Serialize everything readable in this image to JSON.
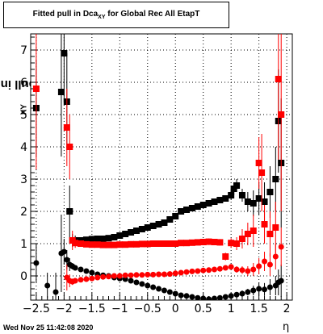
{
  "title": {
    "prefix": "Fitted pull in Dca",
    "sub": "XY",
    "suffix": " for Global Rec All EtapT"
  },
  "ylabel": {
    "main": "pull in Dca",
    "sub": "XY"
  },
  "xlabel": "η",
  "timestamp": "Wed Nov 25 11:42:08 2020",
  "chart_data": {
    "type": "scatter",
    "xlim": [
      -2.6,
      2.1
    ],
    "ylim": [
      -0.75,
      7.5
    ],
    "grid": true,
    "x_ticks": [
      -2.5,
      -2,
      -1.5,
      -1,
      -0.5,
      0,
      0.5,
      1,
      1.5,
      2
    ],
    "x_tick_labels": [
      "−2.5",
      "−2",
      "−1.5",
      "−1",
      "−0.5",
      "0",
      "0.5",
      "1",
      "1.5",
      "2"
    ],
    "y_ticks": [
      0,
      1,
      2,
      3,
      4,
      5,
      6,
      7
    ],
    "y_tick_labels": [
      "0",
      "1",
      "2",
      "3",
      "4",
      "5",
      "6",
      "7"
    ],
    "series": [
      {
        "color": "#000000",
        "marker": "square",
        "x": [
          -2.5,
          -2.05,
          -2.0,
          -1.95,
          -1.9,
          -1.85,
          -1.8,
          -1.7,
          -1.6,
          -1.5,
          -1.4,
          -1.3,
          -1.2,
          -1.1,
          -1.0,
          -0.9,
          -0.8,
          -0.7,
          -0.6,
          -0.5,
          -0.4,
          -0.3,
          -0.2,
          -0.1,
          0.0,
          0.1,
          0.2,
          0.3,
          0.4,
          0.5,
          0.6,
          0.7,
          0.8,
          0.9,
          1.0,
          1.05,
          1.1,
          1.2,
          1.3,
          1.4,
          1.5,
          1.6,
          1.7,
          1.8,
          1.85,
          1.9
        ],
        "y": [
          5.2,
          5.7,
          6.9,
          5.4,
          2.0,
          1.1,
          1.1,
          1.1,
          1.12,
          1.14,
          1.15,
          1.15,
          1.17,
          1.2,
          1.25,
          1.3,
          1.35,
          1.4,
          1.45,
          1.5,
          1.55,
          1.6,
          1.65,
          1.75,
          1.85,
          2.0,
          2.05,
          2.1,
          2.15,
          2.2,
          2.25,
          2.3,
          2.35,
          2.4,
          2.5,
          2.7,
          2.8,
          2.5,
          2.3,
          2.25,
          2.4,
          2.3,
          2.6,
          3.0,
          4.8,
          3.5
        ],
        "err": [
          1.5,
          2.0,
          1.5,
          1.5,
          0.8,
          0.2,
          0.15,
          0.1,
          0.08,
          0.08,
          0.08,
          0.08,
          0.08,
          0.08,
          0.08,
          0.08,
          0.08,
          0.08,
          0.08,
          0.08,
          0.08,
          0.08,
          0.1,
          0.1,
          0.1,
          0.1,
          0.1,
          0.1,
          0.1,
          0.1,
          0.1,
          0.1,
          0.1,
          0.1,
          0.15,
          0.2,
          0.2,
          0.2,
          0.3,
          0.4,
          0.5,
          0.6,
          0.8,
          1.0,
          1.6,
          2.0
        ]
      },
      {
        "color": "#000000",
        "marker": "circle",
        "x": [
          -2.5,
          -2.3,
          -2.15,
          -2.05,
          -2.0,
          -1.95,
          -1.9,
          -1.85,
          -1.8,
          -1.7,
          -1.6,
          -1.5,
          -1.4,
          -1.3,
          -1.2,
          -1.1,
          -1.0,
          -0.9,
          -0.8,
          -0.7,
          -0.6,
          -0.5,
          -0.4,
          -0.3,
          -0.2,
          -0.1,
          0.0,
          0.1,
          0.2,
          0.3,
          0.4,
          0.5,
          0.6,
          0.7,
          0.8,
          0.9,
          1.0,
          1.1,
          1.2,
          1.3,
          1.4,
          1.5,
          1.6,
          1.7,
          1.8,
          1.85,
          1.9
        ],
        "y": [
          0.4,
          -0.3,
          -0.5,
          0.7,
          0.75,
          0.5,
          0.35,
          0.3,
          0.25,
          0.2,
          0.15,
          0.1,
          0.05,
          0.02,
          0.0,
          -0.05,
          -0.08,
          -0.1,
          -0.15,
          -0.2,
          -0.25,
          -0.3,
          -0.35,
          -0.4,
          -0.45,
          -0.5,
          -0.55,
          -0.6,
          -0.62,
          -0.65,
          -0.68,
          -0.7,
          -0.72,
          -0.7,
          -0.68,
          -0.65,
          -0.62,
          -0.58,
          -0.55,
          -0.5,
          -0.45,
          -0.4,
          -0.42,
          -0.35,
          -0.3,
          -0.2,
          -0.15
        ],
        "err": [
          0.6,
          0.4,
          0.6,
          1.2,
          0.4,
          0.3,
          0.2,
          0.1,
          0.08,
          0.06,
          0.05,
          0.05,
          0.05,
          0.05,
          0.05,
          0.05,
          0.05,
          0.05,
          0.05,
          0.05,
          0.05,
          0.05,
          0.05,
          0.05,
          0.05,
          0.05,
          0.05,
          0.05,
          0.05,
          0.05,
          0.05,
          0.05,
          0.05,
          0.05,
          0.05,
          0.05,
          0.06,
          0.08,
          0.1,
          0.1,
          0.15,
          0.2,
          0.2,
          0.25,
          0.3,
          0.4,
          0.5
        ]
      },
      {
        "color": "#ff0000",
        "marker": "square",
        "x": [
          -2.5,
          -1.95,
          -1.9,
          -1.85,
          -1.8,
          -1.7,
          -1.6,
          -1.5,
          -1.4,
          -1.3,
          -1.2,
          -1.1,
          -1.0,
          -0.9,
          -0.8,
          -0.7,
          -0.6,
          -0.5,
          -0.4,
          -0.3,
          -0.2,
          -0.1,
          0.0,
          0.1,
          0.2,
          0.3,
          0.4,
          0.5,
          0.6,
          0.7,
          0.8,
          0.9,
          1.0,
          1.1,
          1.2,
          1.3,
          1.4,
          1.5,
          1.55,
          1.6,
          1.7,
          1.8,
          1.85,
          1.9
        ],
        "y": [
          5.8,
          4.6,
          4.0,
          1.1,
          1.02,
          1.0,
          0.98,
          0.97,
          0.97,
          0.96,
          0.96,
          0.96,
          0.97,
          0.97,
          0.98,
          0.98,
          0.99,
          0.99,
          1.0,
          1.0,
          1.0,
          1.0,
          1.0,
          1.02,
          1.02,
          1.03,
          1.04,
          1.05,
          1.06,
          1.05,
          1.04,
          0.6,
          1.02,
          1.0,
          1.15,
          1.3,
          1.4,
          3.5,
          3.2,
          1.6,
          1.3,
          1.5,
          6.1,
          5.0
        ],
        "err": [
          2.5,
          1.2,
          1.0,
          0.3,
          0.15,
          0.1,
          0.08,
          0.08,
          0.08,
          0.08,
          0.08,
          0.08,
          0.08,
          0.08,
          0.08,
          0.08,
          0.08,
          0.08,
          0.08,
          0.08,
          0.08,
          0.08,
          0.08,
          0.08,
          0.08,
          0.08,
          0.08,
          0.08,
          0.1,
          0.1,
          0.1,
          0.12,
          0.15,
          0.2,
          0.3,
          0.35,
          0.5,
          0.8,
          1.2,
          0.6,
          0.7,
          0.8,
          2.5,
          3.0
        ]
      },
      {
        "color": "#ff0000",
        "marker": "circle",
        "x": [
          -1.95,
          -1.9,
          -1.85,
          -1.8,
          -1.7,
          -1.6,
          -1.5,
          -1.4,
          -1.3,
          -1.2,
          -1.1,
          -1.0,
          -0.9,
          -0.8,
          -0.7,
          -0.6,
          -0.5,
          -0.4,
          -0.3,
          -0.2,
          -0.1,
          0.0,
          0.1,
          0.2,
          0.3,
          0.4,
          0.5,
          0.6,
          0.7,
          0.8,
          0.9,
          1.0,
          1.1,
          1.2,
          1.3,
          1.4,
          1.5,
          1.6,
          1.7,
          1.8,
          1.9
        ],
        "y": [
          -0.05,
          -0.15,
          -0.18,
          -0.15,
          -0.12,
          -0.1,
          -0.08,
          -0.05,
          -0.03,
          -0.02,
          0.0,
          0.0,
          0.02,
          0.02,
          0.03,
          0.03,
          0.04,
          0.04,
          0.05,
          0.05,
          0.06,
          0.08,
          0.1,
          0.12,
          0.14,
          0.15,
          0.17,
          0.18,
          0.2,
          0.22,
          0.25,
          0.28,
          0.2,
          0.18,
          0.15,
          0.2,
          0.3,
          0.45,
          0.35,
          0.6,
          0.9
        ],
        "err": [
          0.4,
          0.2,
          0.1,
          0.08,
          0.06,
          0.05,
          0.05,
          0.05,
          0.05,
          0.05,
          0.05,
          0.05,
          0.05,
          0.05,
          0.05,
          0.05,
          0.05,
          0.05,
          0.05,
          0.05,
          0.05,
          0.05,
          0.05,
          0.05,
          0.05,
          0.05,
          0.05,
          0.05,
          0.05,
          0.05,
          0.06,
          0.08,
          0.1,
          0.12,
          0.15,
          0.2,
          0.25,
          0.3,
          0.35,
          0.4,
          0.6
        ]
      }
    ]
  }
}
